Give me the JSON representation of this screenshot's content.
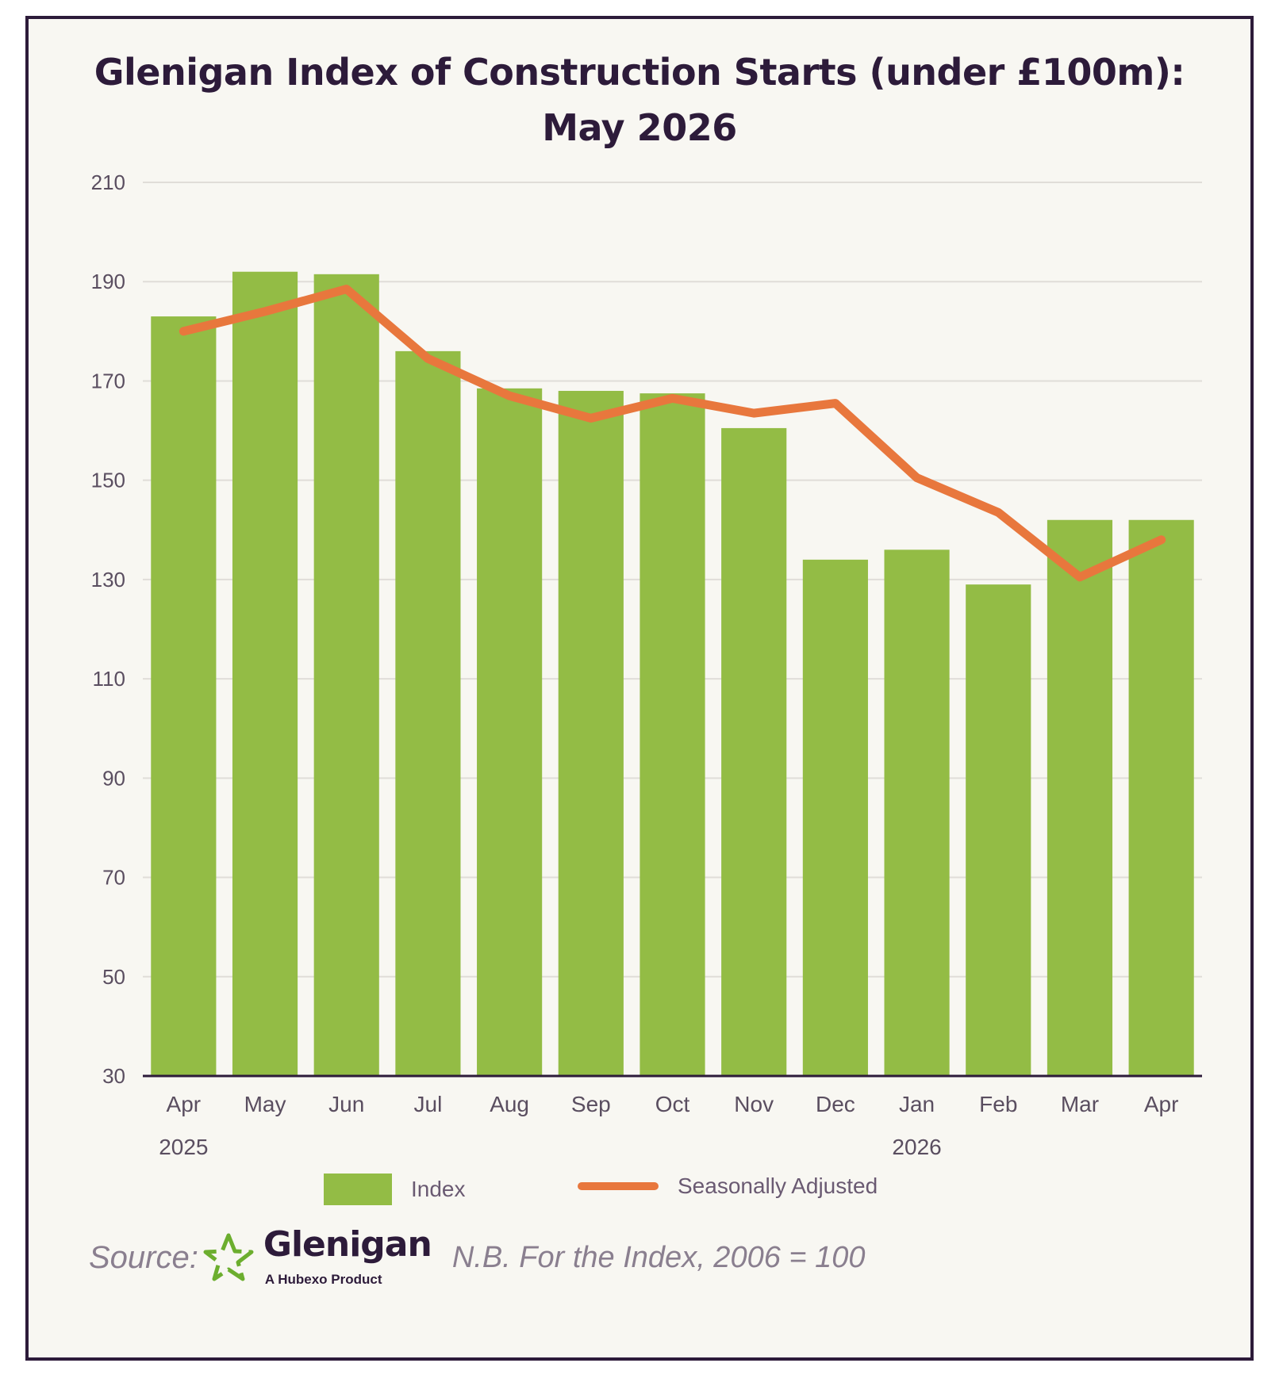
{
  "chart_data": {
    "type": "bar",
    "title_line1": "Glenigan Index of Construction Starts (under £100m):",
    "title_line2": "May 2026",
    "categories": [
      "Apr",
      "May",
      "Jun",
      "Jul",
      "Aug",
      "Sep",
      "Oct",
      "Nov",
      "Dec",
      "Jan",
      "Feb",
      "Mar",
      "Apr"
    ],
    "year_labels": [
      {
        "category_index": 0,
        "label": "2025"
      },
      {
        "category_index": 9,
        "label": "2026"
      }
    ],
    "series": [
      {
        "name": "Index",
        "type": "bar",
        "color": "#93bc45",
        "values": [
          183,
          192,
          191.5,
          176,
          168.5,
          168,
          167.5,
          160.5,
          134,
          136,
          129,
          142,
          142
        ]
      },
      {
        "name": "Seasonally Adjusted",
        "type": "line",
        "color": "#e8773d",
        "values": [
          180,
          184,
          188.5,
          174.5,
          167,
          162.5,
          166.5,
          163.5,
          165.5,
          150.5,
          143.5,
          130.5,
          138
        ]
      }
    ],
    "y_ticks": [
      30,
      50,
      70,
      90,
      110,
      130,
      150,
      170,
      190,
      210
    ],
    "ylim": [
      30,
      210
    ],
    "grid": true,
    "legend_position": "bottom"
  },
  "legend": {
    "bar_label": "Index",
    "line_label": "Seasonally Adjusted"
  },
  "footer": {
    "source_label": "Source:",
    "brand_name": "Glenigan",
    "brand_tagline": "A Hubexo Product",
    "note": "N.B. For the Index, 2006 = 100"
  },
  "colors": {
    "title": "#2d1b3a",
    "bar": "#93bc45",
    "line": "#e8773d",
    "logo": "#6cae2e"
  }
}
